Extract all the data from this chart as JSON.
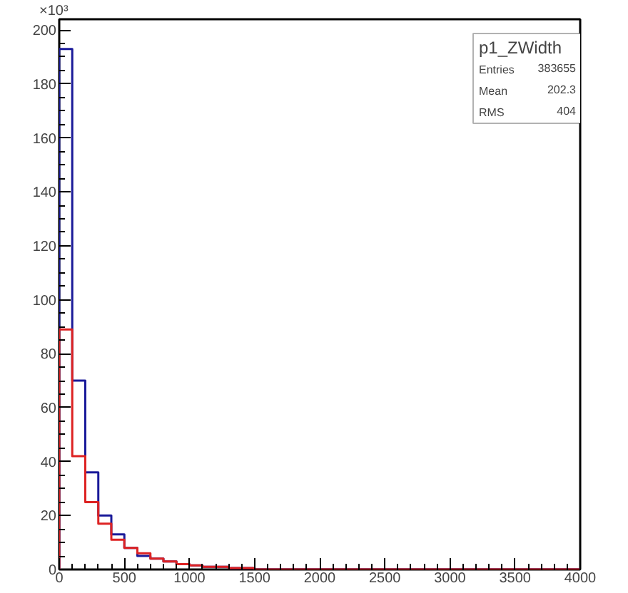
{
  "chart_data": {
    "type": "histogram",
    "ylabel": "×10³",
    "bins": [
      0,
      100,
      200,
      300,
      400,
      500,
      600,
      700,
      800,
      900,
      1000,
      1100,
      1200,
      1300,
      1400,
      1500,
      1600,
      1700,
      1800,
      1900,
      2000,
      2100,
      2200,
      2300,
      2400,
      2500,
      2600,
      2700,
      2800,
      2900,
      3000,
      3100,
      3200,
      3300,
      3400,
      3500,
      3600,
      3700,
      3800,
      3900,
      4000
    ],
    "series": [
      {
        "color": "#1a1a99",
        "values": [
          193,
          70,
          36,
          20,
          13,
          8,
          5,
          4,
          3,
          2,
          1.5,
          1,
          1,
          0.5,
          0.5,
          0,
          0,
          0,
          0,
          0,
          0,
          0,
          0,
          0,
          0,
          0,
          0,
          0,
          0,
          0,
          0,
          0,
          0,
          0,
          0,
          0,
          0,
          0,
          0,
          0
        ]
      },
      {
        "color": "#dd2222",
        "values": [
          89,
          42,
          25,
          17,
          11,
          8,
          6,
          4,
          3,
          2,
          1.5,
          1,
          1,
          0.5,
          0.5,
          0,
          0,
          0,
          0,
          0,
          0,
          0,
          0,
          0,
          0,
          0,
          0,
          0,
          0,
          0,
          0,
          0,
          0,
          0,
          0,
          0,
          0,
          0,
          0,
          0
        ]
      }
    ],
    "xlim": [
      0,
      4000
    ],
    "ylim": [
      0,
      204
    ],
    "xticks": [
      0,
      500,
      1000,
      1500,
      2000,
      2500,
      3000,
      3500,
      4000
    ],
    "yticks": [
      0,
      20,
      40,
      60,
      80,
      100,
      120,
      140,
      160,
      180,
      200
    ],
    "grid": false,
    "annotations": [
      "p1_ZWidth",
      "Entries 383655",
      "Mean 202.3",
      "RMS 404"
    ]
  }
}
